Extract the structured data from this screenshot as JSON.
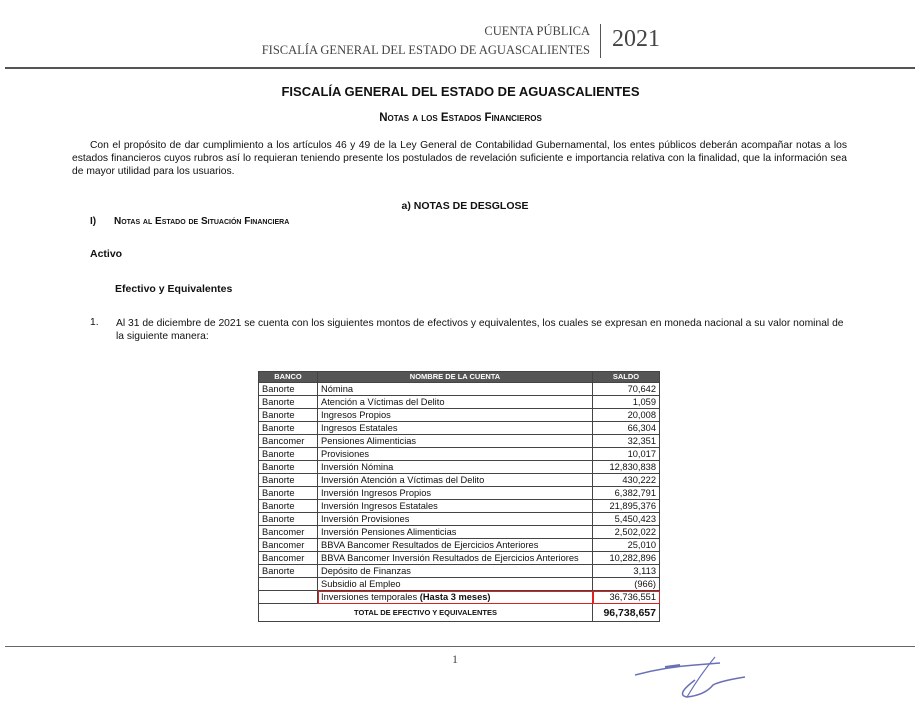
{
  "header": {
    "line1": "CUENTA PÚBLICA",
    "line2": "FISCALÍA GENERAL DEL ESTADO DE AGUASCALIENTES",
    "year": "2021"
  },
  "title": "FISCALÍA GENERAL DEL ESTADO DE AGUASCALIENTES",
  "subtitle": "Notas a los Estados Financieros",
  "intro": "Con el propósito de dar cumplimiento a los artículos 46 y 49 de la Ley General de Contabilidad Gubernamental, los entes públicos deberán acompañar notas a los estados financieros cuyos rubros así lo requieran teniendo presente los postulados de revelación suficiente e importancia relativa con la finalidad, que la información sea de mayor utilidad para los usuarios.",
  "section_a": "a) NOTAS DE DESGLOSE",
  "section_i": {
    "number": "I)",
    "title": "Notas al Estado de Situación Financiera"
  },
  "activo": "Activo",
  "efectivo": "Efectivo y Equivalentes",
  "item1": {
    "number": "1.",
    "text": "Al 31 de diciembre de 2021 se cuenta con los siguientes montos de efectivos y equivalentes, los cuales se expresan en moneda nacional a su valor nominal de la siguiente manera:"
  },
  "table": {
    "headers": [
      "BANCO",
      "NOMBRE DE LA CUENTA",
      "SALDO"
    ],
    "rows": [
      {
        "banco": "Banorte",
        "cuenta": "Nómina",
        "saldo": "70,642"
      },
      {
        "banco": "Banorte",
        "cuenta": "Atención a Víctimas del Delito",
        "saldo": "1,059"
      },
      {
        "banco": "Banorte",
        "cuenta": "Ingresos Propios",
        "saldo": "20,008"
      },
      {
        "banco": "Banorte",
        "cuenta": "Ingresos Estatales",
        "saldo": "66,304"
      },
      {
        "banco": "Bancomer",
        "cuenta": "Pensiones Alimenticias",
        "saldo": "32,351"
      },
      {
        "banco": "Banorte",
        "cuenta": "Provisiones",
        "saldo": "10,017"
      },
      {
        "banco": "Banorte",
        "cuenta": "Inversión Nómina",
        "saldo": "12,830,838"
      },
      {
        "banco": "Banorte",
        "cuenta": "Inversión Atención a Víctimas del Delito",
        "saldo": "430,222"
      },
      {
        "banco": "Banorte",
        "cuenta": "Inversión Ingresos Propios",
        "saldo": "6,382,791"
      },
      {
        "banco": "Banorte",
        "cuenta": "Inversión Ingresos Estatales",
        "saldo": "21,895,376"
      },
      {
        "banco": "Banorte",
        "cuenta": "Inversión Provisiones",
        "saldo": "5,450,423"
      },
      {
        "banco": "Bancomer",
        "cuenta": "Inversión Pensiones Alimenticias",
        "saldo": "2,502,022"
      },
      {
        "banco": "Bancomer",
        "cuenta": "BBVA Bancomer Resultados de Ejercicios Anteriores",
        "saldo": "25,010"
      },
      {
        "banco": "Bancomer",
        "cuenta": "BBVA Bancomer Inversión Resultados de Ejercicios Anteriores",
        "saldo": "10,282,896"
      },
      {
        "banco": "Banorte",
        "cuenta": "Depósito de Finanzas",
        "saldo": "3,113"
      },
      {
        "banco": "",
        "cuenta": "Subsidio al Empleo",
        "saldo": "(966)"
      }
    ],
    "highlight_row": {
      "cuenta": "Inversiones temporales",
      "cuenta_bold": "(Hasta 3 meses)",
      "saldo": "36,736,551"
    },
    "highlight_color": "#e02020",
    "total": {
      "label": "TOTAL DE EFECTIVO Y EQUIVALENTES",
      "saldo": "96,738,657"
    }
  },
  "page_number": "1"
}
